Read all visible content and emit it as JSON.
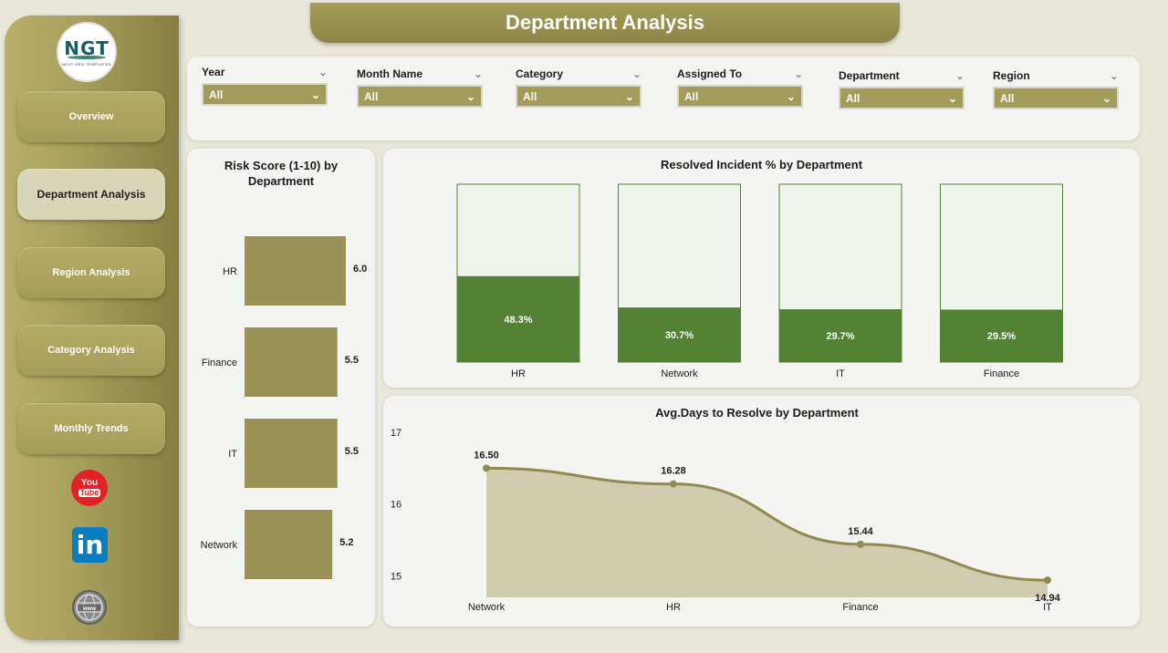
{
  "app": {
    "title": "Department Analysis",
    "logo_text": "NGT",
    "logo_subtext": "NEXT GEN TEMPLATES"
  },
  "nav": {
    "items": [
      {
        "label": "Overview",
        "active": false
      },
      {
        "label": "Department Analysis",
        "active": true
      },
      {
        "label": "Region Analysis",
        "active": false
      },
      {
        "label": "Category Analysis",
        "active": false
      },
      {
        "label": "Monthly Trends",
        "active": false
      }
    ],
    "social": [
      {
        "name": "youtube-icon",
        "text_top": "You",
        "text_bottom": "Tube"
      },
      {
        "name": "linkedin-icon",
        "text": "in"
      },
      {
        "name": "website-icon",
        "text": "www"
      }
    ]
  },
  "filters": [
    {
      "label": "Year",
      "value": "All"
    },
    {
      "label": "Month Name",
      "value": "All"
    },
    {
      "label": "Category",
      "value": "All"
    },
    {
      "label": "Assigned To",
      "value": "All"
    },
    {
      "label": "Department",
      "value": "All"
    },
    {
      "label": "Region",
      "value": "All"
    }
  ],
  "colors": {
    "accent": "#a39b5a",
    "bar_olive": "#9a9157",
    "resolved_fill": "#548235",
    "resolved_track": "#eef4ec",
    "line": "#938a4e",
    "area": "#cfccb0"
  },
  "chart_data": [
    {
      "type": "bar",
      "orientation": "horizontal",
      "title_line1": "Risk Score (1-10) by",
      "title_line2": "Department",
      "categories": [
        "HR",
        "Finance",
        "IT",
        "Network"
      ],
      "values": [
        6.0,
        5.5,
        5.5,
        5.2
      ],
      "value_labels": [
        "6.0",
        "5.5",
        "5.5",
        "5.2"
      ],
      "xlim": [
        0,
        6
      ]
    },
    {
      "type": "bar",
      "title": "Resolved Incident % by Department",
      "categories": [
        "HR",
        "Network",
        "IT",
        "Finance"
      ],
      "values": [
        48.3,
        30.7,
        29.7,
        29.5
      ],
      "value_labels": [
        "48.3%",
        "30.7%",
        "29.7%",
        "29.5%"
      ],
      "ylim": [
        0,
        100
      ]
    },
    {
      "type": "area",
      "title": "Avg.Days to Resolve by Department",
      "categories": [
        "Network",
        "HR",
        "Finance",
        "IT"
      ],
      "values": [
        16.5,
        16.28,
        15.44,
        14.94
      ],
      "value_labels": [
        "16.50",
        "16.28",
        "15.44",
        "14.94"
      ],
      "y_ticks": [
        "17",
        "16",
        "15"
      ],
      "ylim": [
        14.7,
        17
      ]
    }
  ]
}
